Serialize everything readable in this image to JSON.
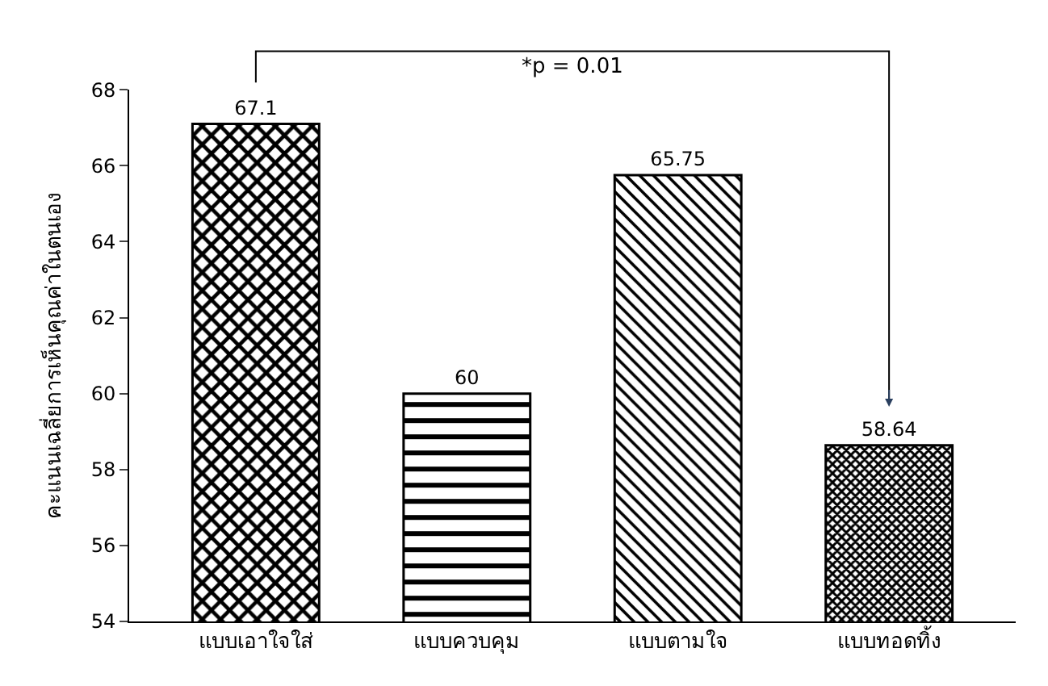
{
  "chart_data": {
    "type": "bar",
    "ylabel": "คะแนนเฉลี่ยการเห็นคุณค่าในตนเอง",
    "categories": [
      "แบบเอาใจใส่",
      "แบบควบคุม",
      "แบบตามใจ",
      "แบบทอดทิ้ง"
    ],
    "values": [
      67.1,
      60,
      65.75,
      58.64
    ],
    "colors": [
      "#000000",
      "#000000",
      "#000000",
      "#000000"
    ],
    "data_labels": true,
    "ylim": [
      54,
      68
    ],
    "yticks": [
      54,
      56,
      58,
      60,
      62,
      64,
      66,
      68
    ],
    "annotations": [
      "*p = 0.01"
    ]
  }
}
